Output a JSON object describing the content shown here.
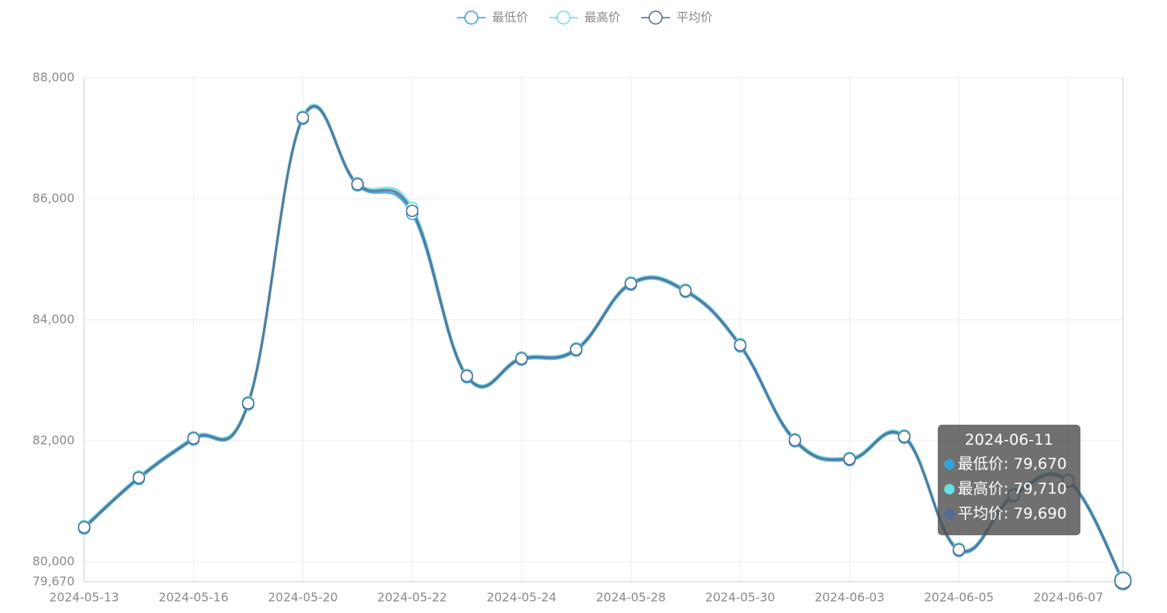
{
  "chart_data": {
    "type": "line",
    "categories": [
      "2024-05-13",
      null,
      "2024-05-16",
      null,
      "2024-05-20",
      null,
      "2024-05-22",
      null,
      "2024-05-24",
      null,
      "2024-05-28",
      null,
      "2024-05-30",
      null,
      "2024-06-03",
      null,
      "2024-06-05",
      null,
      "2024-06-07",
      "2024-06-11"
    ],
    "series": [
      {
        "name": "最低价",
        "color": "#37a2da",
        "values": [
          80550,
          81370,
          82020,
          82600,
          87320,
          86220,
          85750,
          83050,
          83340,
          83490,
          84580,
          84460,
          83560,
          81990,
          81680,
          82050,
          80180,
          81080,
          81320,
          79670
        ],
        "value_labels": [
          null,
          null,
          null,
          null,
          null,
          null,
          null,
          null,
          null,
          null,
          null,
          null,
          null,
          null,
          null,
          null,
          null,
          null,
          null,
          "79,670"
        ]
      },
      {
        "name": "最高价",
        "color": "#67e0e3",
        "values": [
          80590,
          81410,
          82060,
          82640,
          87360,
          86260,
          85850,
          83090,
          83380,
          83530,
          84620,
          84500,
          83600,
          82030,
          81720,
          82090,
          80220,
          81120,
          81360,
          79710
        ],
        "value_labels": [
          null,
          null,
          null,
          null,
          null,
          null,
          null,
          null,
          null,
          null,
          null,
          null,
          null,
          null,
          null,
          null,
          null,
          null,
          null,
          "79,710"
        ]
      },
      {
        "name": "平均价",
        "color": "#516b91",
        "values": [
          80570,
          81390,
          82040,
          82620,
          87340,
          86240,
          85800,
          83070,
          83360,
          83510,
          84600,
          84480,
          83580,
          82010,
          81700,
          82070,
          80200,
          81100,
          81340,
          79690
        ],
        "value_labels": [
          null,
          null,
          null,
          null,
          null,
          null,
          null,
          null,
          null,
          null,
          null,
          null,
          null,
          null,
          null,
          null,
          null,
          null,
          null,
          "79,690"
        ]
      }
    ],
    "ylim": [
      79670,
      88000
    ],
    "yticks": [
      {
        "value": 79670,
        "label": "79,670"
      },
      {
        "value": 80000,
        "label": "80,000"
      },
      {
        "value": 82000,
        "label": "82,000"
      },
      {
        "value": 84000,
        "label": "84,000"
      },
      {
        "value": 86000,
        "label": "86,000"
      },
      {
        "value": 88000,
        "label": "88,000"
      }
    ],
    "grid": true
  }
}
